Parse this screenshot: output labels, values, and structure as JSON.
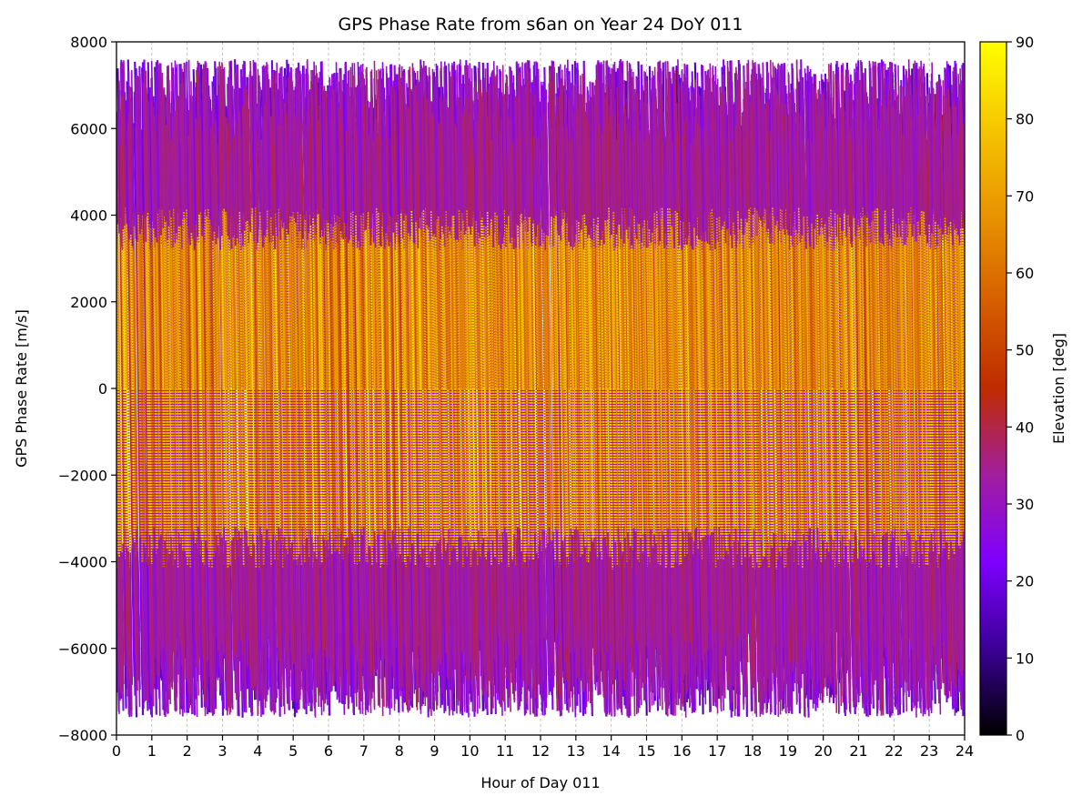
{
  "chart_data": {
    "type": "scatter",
    "title": "GPS Phase Rate from s6an on Year 24 DoY 011",
    "xlabel": "Hour of Day 011",
    "ylabel": "GPS Phase Rate [m/s]",
    "xlim": [
      0,
      24
    ],
    "ylim": [
      -8000,
      8000
    ],
    "x_ticks": [
      0,
      1,
      2,
      3,
      4,
      5,
      6,
      7,
      8,
      9,
      10,
      11,
      12,
      13,
      14,
      15,
      16,
      17,
      18,
      19,
      20,
      21,
      22,
      23,
      24
    ],
    "x_tick_labels": [
      "0",
      "1",
      "2",
      "3",
      "4",
      "5",
      "6",
      "7",
      "8",
      "9",
      "10",
      "11",
      "12",
      "13",
      "14",
      "15",
      "16",
      "17",
      "18",
      "19",
      "20",
      "21",
      "22",
      "23",
      "24"
    ],
    "y_ticks": [
      -8000,
      -6000,
      -4000,
      -2000,
      0,
      2000,
      4000,
      6000,
      8000
    ],
    "y_tick_labels": [
      "−8000",
      "−6000",
      "−4000",
      "−2000",
      "0",
      "2000",
      "4000",
      "6000",
      "8000"
    ],
    "grid": true,
    "colorbar": {
      "label": "Elevation [deg]",
      "range": [
        0,
        90
      ],
      "ticks": [
        0,
        10,
        20,
        30,
        40,
        50,
        60,
        70,
        80,
        90
      ],
      "tick_labels": [
        "0",
        "10",
        "20",
        "30",
        "40",
        "50",
        "60",
        "70",
        "80",
        "90"
      ],
      "colormap": "gnuplot",
      "colors": [
        "#000000",
        "#3a0096",
        "#7f00ff",
        "#a21e9e",
        "#bf2c00",
        "#d55f00",
        "#e89300",
        "#f6c600",
        "#ffff00"
      ]
    },
    "series_description": "Repeating satellite passes: phase rate sweeps from about +7500 to -7500 m/s roughly 4-5 times per hour; low-elevation (purple) arcs at the extremes, high-elevation (orange/yellow) near zero.",
    "series_summary": {
      "x_range": [
        0,
        24
      ],
      "y_range": [
        -7600,
        7700
      ],
      "elevation_range": [
        5,
        88
      ],
      "approx_sweeps_per_hour": 5
    }
  }
}
